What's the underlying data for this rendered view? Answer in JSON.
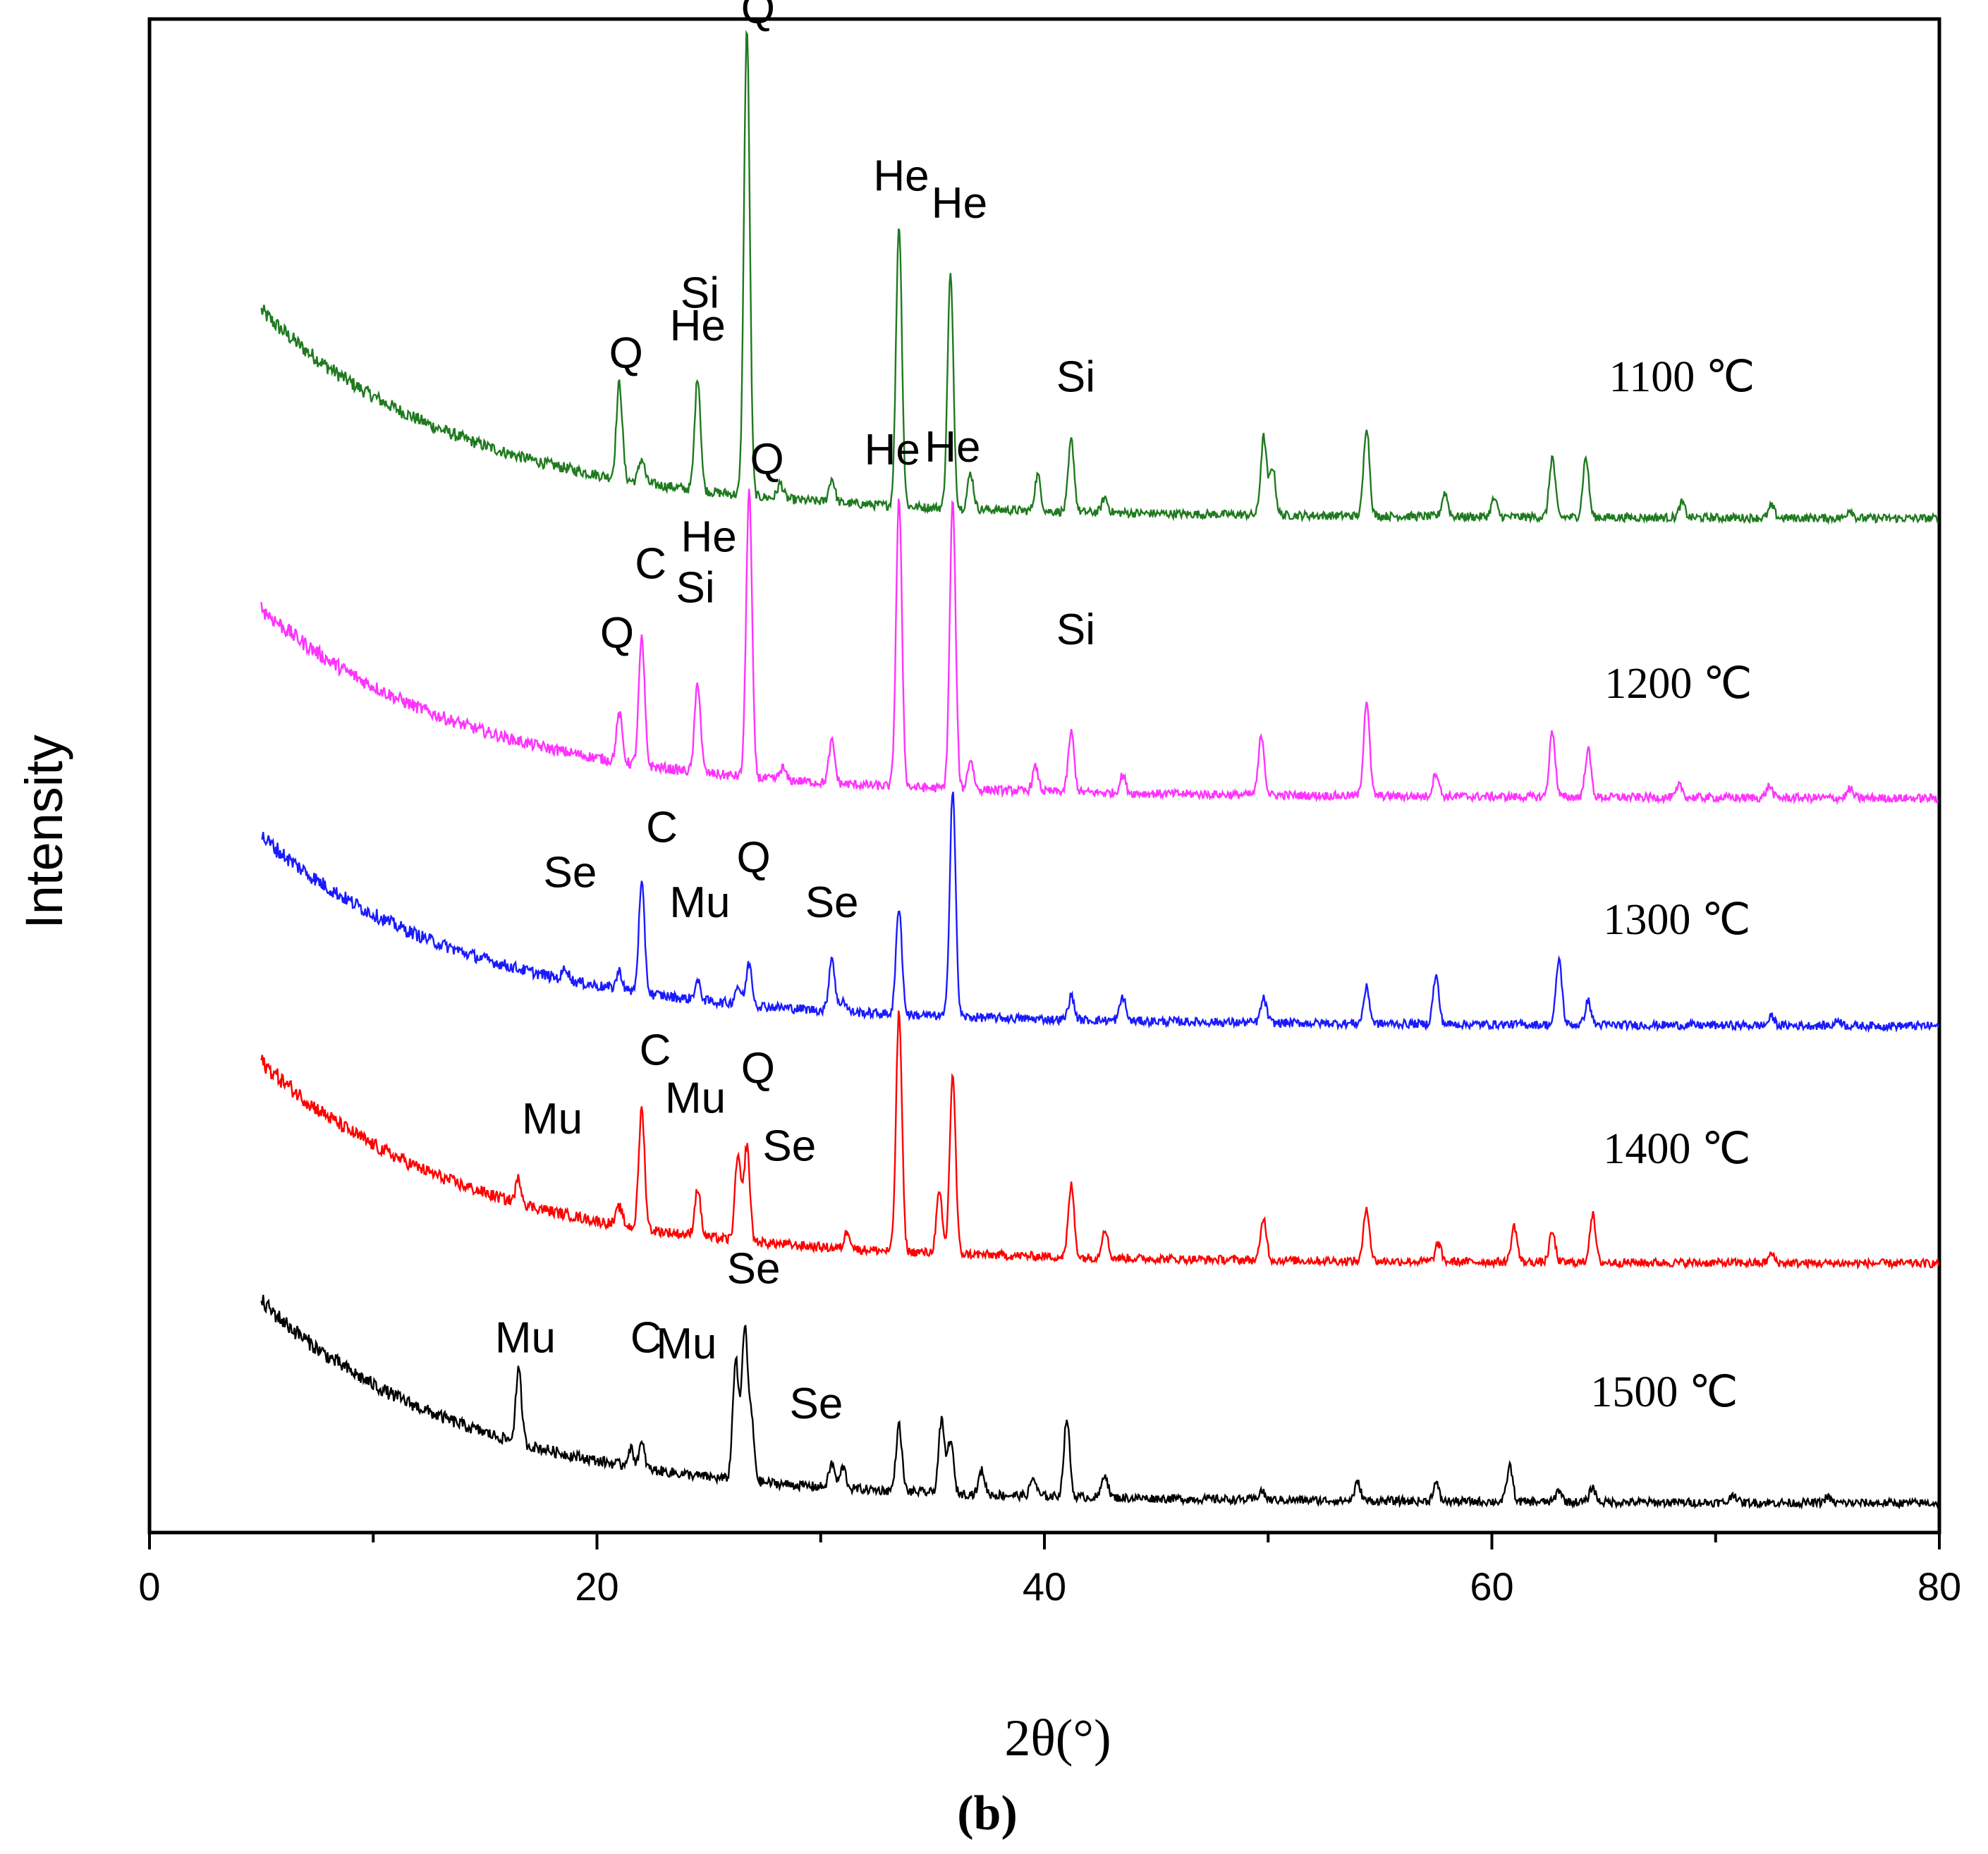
{
  "chart_data": {
    "type": "line",
    "title": "",
    "xlabel": "2θ(°)",
    "ylabel": "Intensity",
    "panel_label": "(b)",
    "xlim": [
      0,
      80
    ],
    "x_ticks": [
      "0",
      "20",
      "40",
      "60",
      "80"
    ],
    "y_ticks": [],
    "grid": false,
    "legend": "none",
    "series": [
      {
        "name": "1100 ℃",
        "color": "#1f7a1f",
        "baseline": 0.0,
        "start_intensity": 3.3,
        "peaks": [
          [
            21.0,
            1.6
          ],
          [
            22.0,
            0.4
          ],
          [
            24.5,
            1.9
          ],
          [
            26.7,
            7.8
          ],
          [
            28.2,
            0.25
          ],
          [
            30.5,
            0.4
          ],
          [
            33.5,
            4.7
          ],
          [
            35.8,
            3.9
          ],
          [
            36.7,
            0.6
          ],
          [
            39.7,
            0.6
          ],
          [
            41.2,
            1.2
          ],
          [
            42.7,
            0.25
          ],
          [
            49.8,
            1.3
          ],
          [
            50.2,
            0.8
          ],
          [
            54.4,
            1.5
          ],
          [
            57.9,
            0.4
          ],
          [
            60.1,
            0.3
          ],
          [
            62.7,
            1.0
          ],
          [
            64.2,
            1.0
          ],
          [
            68.5,
            0.25
          ],
          [
            72.5,
            0.2
          ],
          [
            76.0,
            0.15
          ]
        ],
        "annotations": [
          {
            "label": "Q",
            "x": 21.3,
            "y": 2.55
          },
          {
            "label": "He",
            "x": 24.5,
            "y": 3.0
          },
          {
            "label": "Si",
            "x": 24.6,
            "y": 3.55
          },
          {
            "label": "Q",
            "x": 27.2,
            "y": 8.3
          },
          {
            "label": "He",
            "x": 33.6,
            "y": 5.5
          },
          {
            "label": "He",
            "x": 36.2,
            "y": 5.05
          },
          {
            "label": "Si",
            "x": 41.4,
            "y": 2.15
          }
        ],
        "temperature_label": "1100 ℃"
      },
      {
        "name": "1200 ℃",
        "color": "#ff33ff",
        "baseline": 0.0,
        "start_intensity": 3.0,
        "peaks": [
          [
            21.0,
            0.8
          ],
          [
            22.0,
            2.1
          ],
          [
            24.5,
            1.5
          ],
          [
            26.8,
            4.8
          ],
          [
            28.3,
            0.2
          ],
          [
            30.5,
            0.7
          ],
          [
            33.5,
            4.8
          ],
          [
            35.9,
            4.8
          ],
          [
            36.7,
            0.5
          ],
          [
            39.6,
            0.4
          ],
          [
            41.2,
            1.0
          ],
          [
            43.5,
            0.3
          ],
          [
            49.7,
            1.0
          ],
          [
            54.4,
            1.6
          ],
          [
            57.5,
            0.4
          ],
          [
            62.7,
            1.1
          ],
          [
            64.3,
            0.8
          ],
          [
            68.4,
            0.2
          ],
          [
            72.4,
            0.2
          ],
          [
            76.0,
            0.15
          ]
        ],
        "annotations": [
          {
            "label": "Q",
            "x": 20.9,
            "y": 2.55
          },
          {
            "label": "C",
            "x": 22.4,
            "y": 3.7
          },
          {
            "label": "He",
            "x": 25.0,
            "y": 4.15
          },
          {
            "label": "Si",
            "x": 24.4,
            "y": 3.3
          },
          {
            "label": "Q",
            "x": 27.6,
            "y": 5.45
          },
          {
            "label": "He",
            "x": 33.2,
            "y": 5.6
          },
          {
            "label": "He",
            "x": 35.9,
            "y": 5.65
          },
          {
            "label": "Si",
            "x": 41.4,
            "y": 2.6
          }
        ],
        "temperature_label": "1200 ℃"
      },
      {
        "name": "1300 ℃",
        "color": "#1a1aff",
        "baseline": 0.0,
        "start_intensity": 3.0,
        "peaks": [
          [
            18.6,
            0.2
          ],
          [
            21.0,
            0.3
          ],
          [
            22.0,
            1.8
          ],
          [
            24.5,
            0.3
          ],
          [
            26.3,
            0.3
          ],
          [
            26.8,
            0.7
          ],
          [
            30.5,
            0.9
          ],
          [
            31.0,
            0.2
          ],
          [
            33.5,
            1.8
          ],
          [
            35.9,
            3.8
          ],
          [
            41.2,
            0.4
          ],
          [
            43.5,
            0.4
          ],
          [
            49.8,
            0.4
          ],
          [
            54.4,
            0.6
          ],
          [
            57.5,
            0.8
          ],
          [
            63.0,
            1.1
          ],
          [
            64.3,
            0.4
          ],
          [
            72.5,
            0.15
          ],
          [
            75.5,
            0.1
          ]
        ],
        "annotations": [
          {
            "label": "Se",
            "x": 18.8,
            "y": 2.35
          },
          {
            "label": "C",
            "x": 22.9,
            "y": 3.1
          },
          {
            "label": "Mu",
            "x": 24.6,
            "y": 1.85
          },
          {
            "label": "Q",
            "x": 27.0,
            "y": 2.6
          },
          {
            "label": "Se",
            "x": 30.5,
            "y": 1.85
          }
        ],
        "temperature_label": "1300 ℃"
      },
      {
        "name": "1400 ℃",
        "color": "#ff0000",
        "baseline": 0.0,
        "start_intensity": 3.2,
        "peaks": [
          [
            16.5,
            0.4
          ],
          [
            21.0,
            0.3
          ],
          [
            22.0,
            2.0
          ],
          [
            24.5,
            0.8
          ],
          [
            26.3,
            1.4
          ],
          [
            26.7,
            1.6
          ],
          [
            31.2,
            0.3
          ],
          [
            33.5,
            4.0
          ],
          [
            35.3,
            1.0
          ],
          [
            35.9,
            3.0
          ],
          [
            41.2,
            1.2
          ],
          [
            42.7,
            0.5
          ],
          [
            49.8,
            0.7
          ],
          [
            54.4,
            0.9
          ],
          [
            57.6,
            0.3
          ],
          [
            61.0,
            0.6
          ],
          [
            62.7,
            0.5
          ],
          [
            64.5,
            0.8
          ],
          [
            72.5,
            0.15
          ]
        ],
        "annotations": [
          {
            "label": "Mu",
            "x": 18.0,
            "y": 2.2
          },
          {
            "label": "C",
            "x": 22.6,
            "y": 3.35
          },
          {
            "label": "Mu",
            "x": 24.4,
            "y": 2.55
          },
          {
            "label": "Q",
            "x": 27.2,
            "y": 3.05
          },
          {
            "label": "Se",
            "x": 28.6,
            "y": 1.75
          }
        ],
        "temperature_label": "1400 ℃"
      },
      {
        "name": "1500 ℃",
        "color": "#000000",
        "baseline": 0.0,
        "start_intensity": 3.2,
        "peaks": [
          [
            16.5,
            1.2
          ],
          [
            21.5,
            0.3
          ],
          [
            22.0,
            0.4
          ],
          [
            26.2,
            2.0
          ],
          [
            26.6,
            2.5
          ],
          [
            26.9,
            1.0
          ],
          [
            30.5,
            0.4
          ],
          [
            31.0,
            0.35
          ],
          [
            33.5,
            1.1
          ],
          [
            35.4,
            1.2
          ],
          [
            35.8,
            0.9
          ],
          [
            37.2,
            0.4
          ],
          [
            39.5,
            0.3
          ],
          [
            41.0,
            1.3
          ],
          [
            42.7,
            0.4
          ],
          [
            49.7,
            0.15
          ],
          [
            54.0,
            0.3
          ],
          [
            57.5,
            0.3
          ],
          [
            60.8,
            0.6
          ],
          [
            63.0,
            0.2
          ],
          [
            64.5,
            0.25
          ],
          [
            70.8,
            0.15
          ],
          [
            75.0,
            0.1
          ]
        ],
        "annotations": [
          {
            "label": "Mu",
            "x": 16.8,
            "y": 2.55
          },
          {
            "label": "C",
            "x": 22.2,
            "y": 2.55
          },
          {
            "label": "Mu",
            "x": 24.0,
            "y": 2.45
          },
          {
            "label": "Se",
            "x": 27.0,
            "y": 3.7
          },
          {
            "label": "Se",
            "x": 29.8,
            "y": 1.45
          }
        ],
        "temperature_label": "1500 ℃"
      }
    ]
  }
}
